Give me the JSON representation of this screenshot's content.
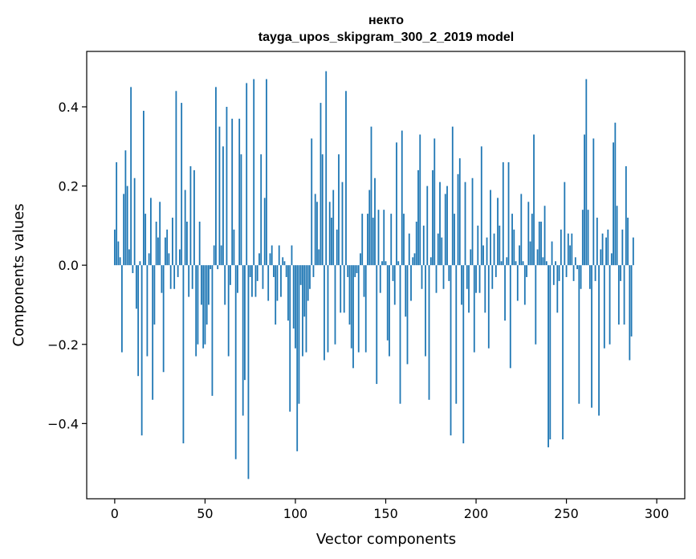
{
  "chart_data": {
    "type": "bar",
    "title": "некто",
    "subtitle": "tayga_upos_skipgram_300_2_2019 model",
    "xlabel": "Vector components",
    "ylabel": "Components values",
    "xlim": [
      -15.5,
      315.5
    ],
    "ylim": [
      -0.59,
      0.54
    ],
    "xticks": [
      0,
      50,
      100,
      150,
      200,
      250,
      300
    ],
    "yticks": [
      -0.4,
      -0.2,
      0.0,
      0.2,
      0.4
    ],
    "ytick_labels": [
      "−0.4",
      "−0.2",
      "0.0",
      "0.2",
      "0.4"
    ],
    "bar_color": "#1f77b4",
    "grid": false,
    "values": [
      0.09,
      0.26,
      0.06,
      0.02,
      -0.22,
      0.18,
      0.29,
      0.2,
      0.04,
      0.45,
      -0.02,
      0.22,
      -0.11,
      -0.28,
      0.01,
      -0.43,
      0.39,
      0.13,
      -0.23,
      0.03,
      0.17,
      -0.34,
      -0.15,
      0.11,
      0.07,
      0.16,
      -0.07,
      -0.27,
      0.07,
      0.09,
      0.03,
      -0.06,
      0.12,
      -0.06,
      0.44,
      -0.03,
      0.04,
      0.41,
      -0.45,
      0.19,
      0.11,
      -0.08,
      0.25,
      -0.06,
      0.24,
      -0.23,
      -0.2,
      0.11,
      -0.1,
      -0.21,
      -0.2,
      -0.15,
      -0.1,
      -0.01,
      -0.33,
      0.05,
      0.45,
      -0.01,
      0.35,
      0.05,
      0.3,
      -0.1,
      0.4,
      -0.23,
      -0.05,
      0.37,
      0.09,
      -0.49,
      -0.07,
      0.37,
      0.28,
      -0.38,
      -0.29,
      0.46,
      -0.54,
      -0.03,
      -0.08,
      0.47,
      -0.08,
      -0.04,
      0.03,
      0.28,
      -0.06,
      0.17,
      0.47,
      -0.09,
      0.03,
      0.05,
      -0.03,
      -0.15,
      -0.09,
      0.05,
      -0.08,
      0.02,
      0.01,
      -0.03,
      -0.14,
      -0.37,
      0.05,
      -0.16,
      -0.21,
      -0.47,
      -0.35,
      -0.05,
      -0.23,
      -0.13,
      -0.22,
      -0.09,
      -0.06,
      0.32,
      -0.03,
      0.18,
      0.16,
      0.04,
      0.41,
      0.28,
      -0.24,
      0.49,
      -0.22,
      0.16,
      0.12,
      0.19,
      -0.2,
      0.09,
      0.28,
      -0.12,
      0.21,
      -0.12,
      0.44,
      -0.03,
      -0.15,
      -0.21,
      -0.26,
      -0.03,
      -0.02,
      -0.22,
      0.03,
      0.13,
      -0.08,
      -0.22,
      0.13,
      0.19,
      0.35,
      0.12,
      0.22,
      -0.3,
      0.14,
      -0.07,
      0.01,
      0.14,
      0.01,
      -0.19,
      -0.23,
      0.13,
      -0.04,
      -0.1,
      0.31,
      0.01,
      -0.35,
      0.34,
      0.13,
      -0.13,
      -0.25,
      0.08,
      -0.09,
      0.02,
      0.03,
      0.11,
      0.24,
      0.33,
      -0.06,
      0.1,
      -0.23,
      0.2,
      -0.34,
      0.02,
      0.24,
      0.32,
      -0.07,
      0.08,
      0.21,
      0.07,
      -0.06,
      0.18,
      0.2,
      -0.04,
      -0.43,
      0.35,
      0.13,
      -0.35,
      0.23,
      0.27,
      -0.1,
      -0.45,
      0.21,
      -0.06,
      -0.12,
      0.04,
      0.22,
      -0.22,
      -0.07,
      0.1,
      -0.07,
      0.3,
      0.05,
      -0.12,
      0.07,
      -0.21,
      0.19,
      -0.06,
      0.08,
      -0.03,
      0.17,
      0.1,
      0.01,
      0.26,
      -0.14,
      0.02,
      0.26,
      -0.26,
      0.13,
      0.09,
      0.01,
      -0.09,
      0.05,
      0.18,
      0.01,
      -0.1,
      -0.03,
      0.16,
      0.06,
      0.13,
      0.33,
      -0.2,
      0.04,
      0.11,
      0.11,
      0.02,
      0.15,
      0.01,
      -0.46,
      -0.44,
      0.06,
      -0.05,
      0.01,
      -0.12,
      -0.04,
      0.09,
      -0.44,
      0.21,
      -0.03,
      0.08,
      0.05,
      0.08,
      -0.04,
      0.02,
      -0.01,
      -0.35,
      -0.06,
      0.14,
      0.33,
      0.47,
      0.14,
      -0.06,
      -0.36,
      0.32,
      -0.04,
      0.12,
      -0.38,
      0.04,
      0.08,
      -0.21,
      0.07,
      0.09,
      -0.2,
      0.03,
      0.31,
      0.36,
      0.15,
      -0.15,
      -0.04,
      0.09,
      -0.15,
      0.25,
      0.12,
      -0.24,
      -0.18,
      0.07
    ]
  }
}
